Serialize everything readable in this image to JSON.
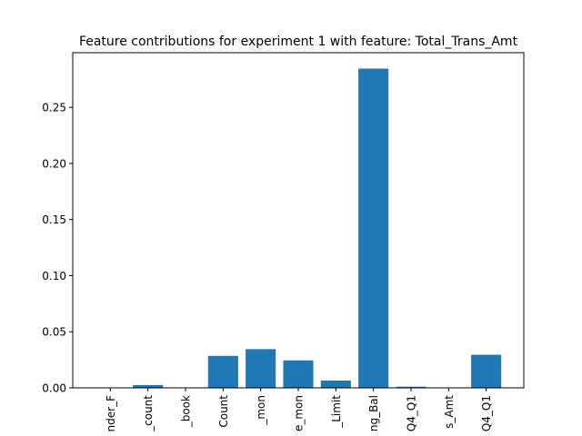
{
  "chart_data": {
    "type": "bar",
    "title": "Feature contributions for experiment 1 with feature: Total_Trans_Amt",
    "xlabel": "",
    "ylabel": "",
    "categories": [
      "nder_F",
      "_count",
      "_book",
      "Count",
      "_mon",
      "e_mon",
      "_Limit",
      "ng_Bal",
      "Q4_Q1",
      "s_Amt",
      "Q4_Q1"
    ],
    "values": [
      0.0,
      0.0025,
      0.0,
      0.0285,
      0.0345,
      0.0245,
      0.0065,
      0.2845,
      0.001,
      0.0,
      0.0295
    ],
    "yticks": [
      0.0,
      0.05,
      0.1,
      0.15,
      0.2,
      0.25
    ],
    "ytick_labels": [
      "0.00",
      "0.05",
      "0.10",
      "0.15",
      "0.20",
      "0.25"
    ],
    "ylim": [
      0,
      0.2987
    ],
    "grid": false,
    "bar_color": "#1f77b4"
  }
}
